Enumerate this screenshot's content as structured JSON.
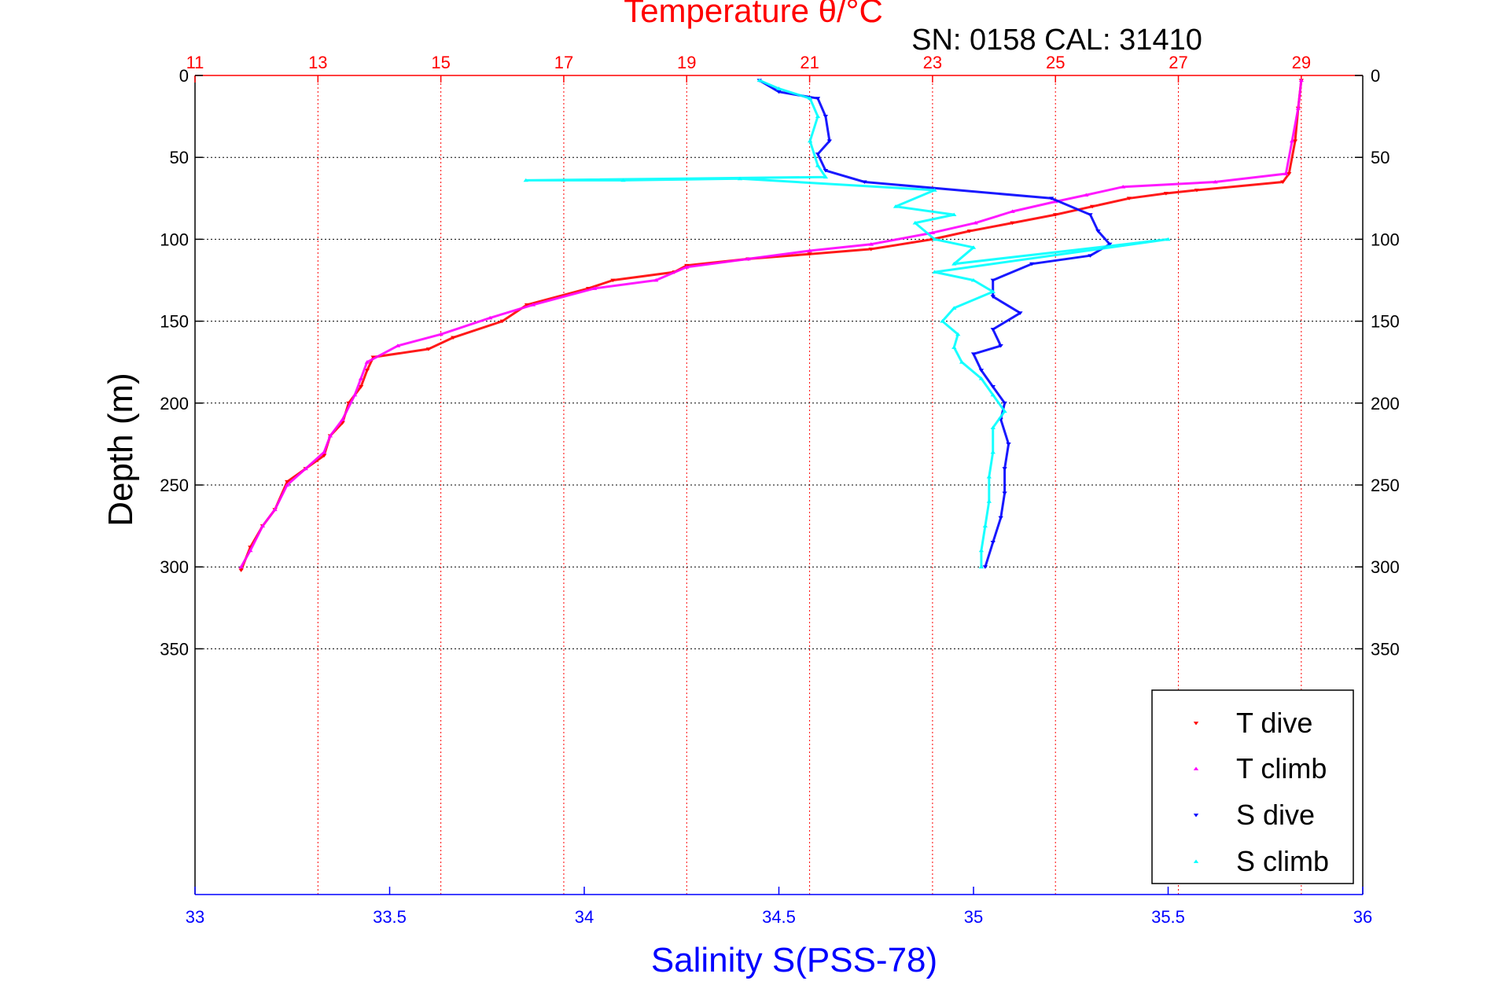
{
  "chart_data": {
    "type": "scatter",
    "title": "Temperature θ/°C",
    "subtitle": "SN: 0158  CAL: 31410",
    "xlabel": "Salinity S(PSS-78)",
    "ylabel": "Depth (m)",
    "temperature_axis": {
      "range": [
        11,
        30
      ],
      "ticks": [
        11,
        13,
        15,
        17,
        19,
        21,
        23,
        25,
        27,
        29
      ],
      "tick_labels": [
        "11",
        "13",
        "15",
        "17",
        "19",
        "21",
        "23",
        "25",
        "27",
        "29"
      ],
      "grid": true,
      "color": "#ff0000",
      "position": "top"
    },
    "salinity_axis": {
      "range": [
        33,
        36
      ],
      "ticks": [
        33,
        33.5,
        34,
        34.5,
        35,
        35.5,
        36
      ],
      "tick_labels": [
        "33",
        "33.5",
        "34",
        "34.5",
        "35",
        "35.5",
        "36"
      ],
      "color": "#0000ff",
      "position": "bottom"
    },
    "depth_axis": {
      "range": [
        0,
        500
      ],
      "reversed": true,
      "ticks": [
        0,
        50,
        100,
        150,
        200,
        250,
        300,
        350
      ],
      "tick_labels": [
        "0",
        "50",
        "100",
        "150",
        "200",
        "250",
        "300",
        "350"
      ],
      "grid": true
    },
    "legend": {
      "placement": "bottom-right",
      "entries": [
        {
          "label": "T dive",
          "color": "#ff0000",
          "marker": "triangle-down"
        },
        {
          "label": "T climb",
          "color": "#ff00ff",
          "marker": "triangle-up"
        },
        {
          "label": "S dive",
          "color": "#0000ff",
          "marker": "triangle-down"
        },
        {
          "label": "S climb",
          "color": "#00ffff",
          "marker": "triangle-up"
        }
      ]
    },
    "series": [
      {
        "name": "T dive",
        "axis": "temperature",
        "color": "#ff0000",
        "marker": "triangle-down",
        "points": [
          [
            29.0,
            3
          ],
          [
            28.95,
            20
          ],
          [
            28.9,
            40
          ],
          [
            28.8,
            60
          ],
          [
            28.7,
            65
          ],
          [
            27.3,
            70
          ],
          [
            26.8,
            72
          ],
          [
            26.2,
            75
          ],
          [
            25.6,
            80
          ],
          [
            25.0,
            85
          ],
          [
            24.3,
            90
          ],
          [
            23.6,
            95
          ],
          [
            23.0,
            100
          ],
          [
            22.0,
            106
          ],
          [
            21.0,
            109
          ],
          [
            20.0,
            112
          ],
          [
            19.0,
            116
          ],
          [
            18.8,
            120
          ],
          [
            17.8,
            125
          ],
          [
            17.4,
            130
          ],
          [
            16.4,
            140
          ],
          [
            16.0,
            150
          ],
          [
            15.2,
            160
          ],
          [
            14.8,
            167
          ],
          [
            13.9,
            172
          ],
          [
            13.8,
            180
          ],
          [
            13.7,
            190
          ],
          [
            13.5,
            200
          ],
          [
            13.4,
            212
          ],
          [
            13.2,
            220
          ],
          [
            13.1,
            232
          ],
          [
            12.8,
            240
          ],
          [
            12.5,
            248
          ],
          [
            12.3,
            265
          ],
          [
            12.1,
            275
          ],
          [
            11.9,
            288
          ],
          [
            11.75,
            302
          ]
        ]
      },
      {
        "name": "T climb",
        "axis": "temperature",
        "color": "#ff00ff",
        "marker": "triangle-up",
        "points": [
          [
            29.0,
            3
          ],
          [
            28.95,
            20
          ],
          [
            28.85,
            40
          ],
          [
            28.75,
            60
          ],
          [
            27.6,
            65
          ],
          [
            26.1,
            68
          ],
          [
            25.5,
            73
          ],
          [
            25.0,
            77
          ],
          [
            24.3,
            83
          ],
          [
            23.7,
            90
          ],
          [
            23.0,
            96
          ],
          [
            22.0,
            103
          ],
          [
            21.0,
            107
          ],
          [
            20.0,
            112
          ],
          [
            19.0,
            117
          ],
          [
            18.5,
            125
          ],
          [
            17.5,
            130
          ],
          [
            16.5,
            140
          ],
          [
            15.8,
            148
          ],
          [
            15.0,
            158
          ],
          [
            14.3,
            165
          ],
          [
            13.8,
            175
          ],
          [
            13.7,
            185
          ],
          [
            13.6,
            195
          ],
          [
            13.4,
            210
          ],
          [
            13.2,
            220
          ],
          [
            13.1,
            230
          ],
          [
            12.8,
            240
          ],
          [
            12.5,
            250
          ],
          [
            12.3,
            265
          ],
          [
            12.1,
            275
          ],
          [
            11.9,
            290
          ],
          [
            11.75,
            300
          ]
        ]
      },
      {
        "name": "S dive",
        "axis": "salinity",
        "color": "#0000ff",
        "marker": "triangle-down",
        "points": [
          [
            34.45,
            3
          ],
          [
            34.5,
            10
          ],
          [
            34.6,
            14
          ],
          [
            34.62,
            25
          ],
          [
            34.63,
            40
          ],
          [
            34.6,
            48
          ],
          [
            34.62,
            58
          ],
          [
            34.72,
            65
          ],
          [
            35.2,
            75
          ],
          [
            35.3,
            85
          ],
          [
            35.32,
            95
          ],
          [
            35.35,
            103
          ],
          [
            35.3,
            110
          ],
          [
            35.15,
            115
          ],
          [
            35.05,
            125
          ],
          [
            35.05,
            135
          ],
          [
            35.12,
            145
          ],
          [
            35.05,
            155
          ],
          [
            35.07,
            165
          ],
          [
            35.0,
            170
          ],
          [
            35.02,
            180
          ],
          [
            35.05,
            190
          ],
          [
            35.08,
            200
          ],
          [
            35.07,
            210
          ],
          [
            35.09,
            225
          ],
          [
            35.08,
            240
          ],
          [
            35.08,
            255
          ],
          [
            35.07,
            270
          ],
          [
            35.05,
            285
          ],
          [
            35.03,
            300
          ]
        ]
      },
      {
        "name": "S climb",
        "axis": "salinity",
        "color": "#00ffff",
        "marker": "triangle-up",
        "points": [
          [
            34.45,
            3
          ],
          [
            34.5,
            8
          ],
          [
            34.58,
            14
          ],
          [
            34.6,
            25
          ],
          [
            34.58,
            40
          ],
          [
            34.6,
            55
          ],
          [
            34.62,
            62
          ],
          [
            33.85,
            64
          ],
          [
            34.1,
            64
          ],
          [
            34.4,
            63
          ],
          [
            34.9,
            70
          ],
          [
            34.8,
            80
          ],
          [
            34.95,
            85
          ],
          [
            34.85,
            90
          ],
          [
            34.9,
            100
          ],
          [
            35.0,
            105
          ],
          [
            34.95,
            115
          ],
          [
            35.5,
            100
          ],
          [
            34.9,
            120
          ],
          [
            35.0,
            125
          ],
          [
            35.05,
            132
          ],
          [
            34.95,
            142
          ],
          [
            34.92,
            150
          ],
          [
            34.96,
            158
          ],
          [
            34.95,
            166
          ],
          [
            34.97,
            175
          ],
          [
            35.02,
            185
          ],
          [
            35.05,
            195
          ],
          [
            35.08,
            205
          ],
          [
            35.05,
            215
          ],
          [
            35.05,
            230
          ],
          [
            35.04,
            245
          ],
          [
            35.04,
            260
          ],
          [
            35.03,
            275
          ],
          [
            35.02,
            290
          ],
          [
            35.02,
            300
          ]
        ]
      }
    ]
  }
}
